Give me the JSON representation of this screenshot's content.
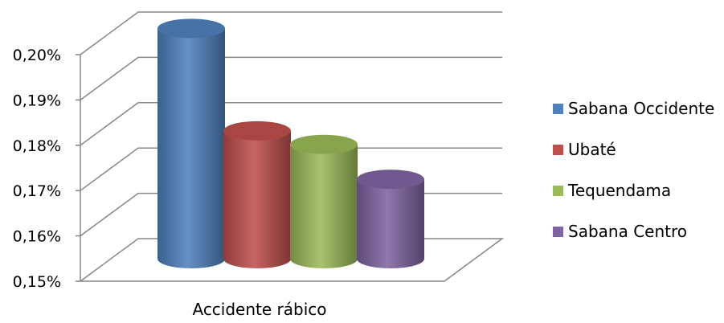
{
  "chart_data": {
    "type": "bar",
    "style": "3d-cylinder",
    "categories": [
      "Accidente rábico"
    ],
    "series": [
      {
        "name": "Sabana Occidente",
        "values": [
          0.201
        ],
        "color": "#4F81BD"
      },
      {
        "name": "Ubaté",
        "values": [
          0.1784
        ],
        "color": "#C0504D"
      },
      {
        "name": "Tequendama",
        "values": [
          0.1754
        ],
        "color": "#9BBB59"
      },
      {
        "name": "Sabana Centro",
        "values": [
          0.1677
        ],
        "color": "#8064A2"
      }
    ],
    "ylim": [
      0.15,
      0.2
    ],
    "yticks": [
      "0,15%",
      "0,16%",
      "0,17%",
      "0,18%",
      "0,19%",
      "0,20%"
    ],
    "grid": true,
    "legend_position": "right"
  }
}
